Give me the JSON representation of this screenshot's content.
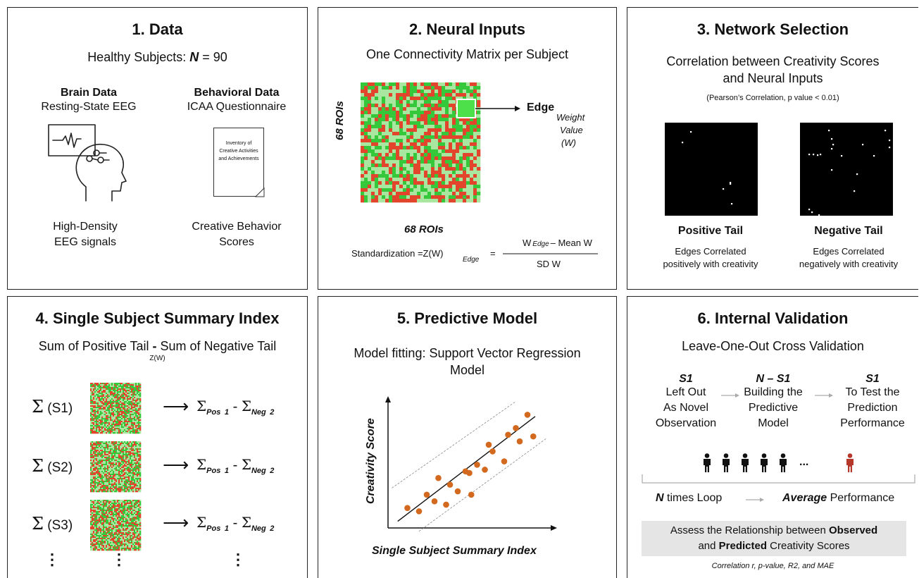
{
  "panel1": {
    "title": "1. Data",
    "subtitle_pre": "Healthy Subjects: ",
    "subtitle_n": "N",
    "subtitle_post": " = 90",
    "brain_heading": "Brain Data",
    "brain_sub": "Resting-State EEG",
    "behav_heading": "Behavioral Data",
    "behav_sub": "ICAA Questionnaire",
    "doc_text": "Inventory of Creative Activities and Achievements",
    "brain_caption_1": "High-Density",
    "brain_caption_2": "EEG signals",
    "behav_caption_1": "Creative Behavior",
    "behav_caption_2": "Scores"
  },
  "panel2": {
    "title": "2. Neural Inputs",
    "subtitle": "One Connectivity Matrix per Subject",
    "edge_label": "Edge",
    "weight_1": "Weight",
    "weight_2": "Value",
    "weight_3": "(W)",
    "y_axis": "68 ROIs",
    "x_axis": "68 ROIs",
    "formula_left": "Standardization =Z(W)",
    "formula_sub": "Edge",
    "formula_eq": "=",
    "formula_num_w": "W",
    "formula_num_sub": "Edge",
    "formula_num_rest": "– Mean W",
    "formula_den": "SD W",
    "colors": {
      "green": "#35c83a",
      "light_green": "#a9e6a0",
      "red": "#e2452c",
      "highlight": "#4ee04a"
    }
  },
  "panel3": {
    "title": "3. Network Selection",
    "subtitle_1": "Correlation between Creativity Scores",
    "subtitle_2": "and Neural Inputs",
    "note": "(Pearson’s Correlation, p value < 0.01)",
    "pos_title": "Positive Tail",
    "pos_desc_1": "Edges Correlated",
    "pos_desc_2": "positively with creativity",
    "neg_title": "Negative Tail",
    "neg_desc_1": "Edges Correlated",
    "neg_desc_2": "negatively with creativity"
  },
  "panel4": {
    "title": "4. Single Subject Summary Index",
    "subtitle_a": "Sum of Positive Tail ",
    "subtitle_dash": "-",
    "subtitle_b": " Sum of Negative Tail",
    "subtitle_sub": "Z(W)",
    "sigma": "Σ",
    "rows": [
      {
        "label": "(S1)"
      },
      {
        "label": "(S2)"
      },
      {
        "label": "(S3)"
      }
    ],
    "arrow": "⟶",
    "pos_sub": "Pos",
    "pos_num": "1",
    "minus": "-",
    "neg_sub": "Neg",
    "neg_num": "2",
    "ellipsis": "⋮"
  },
  "panel5": {
    "title": "5. Predictive Model",
    "subtitle_1": "Model fitting: Support Vector Regression",
    "subtitle_2": "Model",
    "y_axis": "Creativity Score",
    "x_axis": "Single Subject Summary Index",
    "point_color": "#d2691e",
    "chart_data": {
      "type": "scatter",
      "x": [
        1.0,
        1.6,
        2.0,
        2.4,
        2.6,
        3.0,
        3.2,
        3.6,
        4.0,
        4.2,
        4.3,
        4.6,
        5.0,
        5.2,
        5.4,
        6.0,
        6.2,
        6.6,
        6.8,
        7.2,
        7.5
      ],
      "y": [
        1.2,
        1.0,
        2.0,
        1.6,
        3.0,
        1.4,
        2.6,
        2.2,
        3.4,
        3.3,
        2.0,
        3.8,
        3.5,
        5.0,
        4.6,
        4.0,
        5.6,
        6.0,
        5.2,
        6.8,
        5.5
      ]
    }
  },
  "panel6": {
    "title": "6. Internal Validation",
    "subtitle": "Leave-One-Out Cross Validation",
    "step1_head": "S1",
    "step1_l1": "Left Out",
    "step1_l2": "As Novel",
    "step1_l3": "Observation",
    "step2_head": "N – S1",
    "step2_l1": "Building the",
    "step2_l2": "Predictive",
    "step2_l3": "Model",
    "step3_head": "S1",
    "step3_l1": "To Test the",
    "step3_l2": "Prediction",
    "step3_l3": "Performance",
    "people_ellipsis": "...",
    "loop_n": "N",
    "loop_text": " times Loop",
    "avg_b": "Average",
    "avg_text": " Performance",
    "box_l1_pre": "Assess the Relationship between ",
    "box_l1_b": "Observed",
    "box_l2_pre": "and ",
    "box_l2_b": "Predicted",
    "box_l2_post": " Creativity Scores",
    "metrics": "Correlation r, p-value, R2, and MAE",
    "person_color": "#111111",
    "test_person_color": "#b5382a"
  }
}
